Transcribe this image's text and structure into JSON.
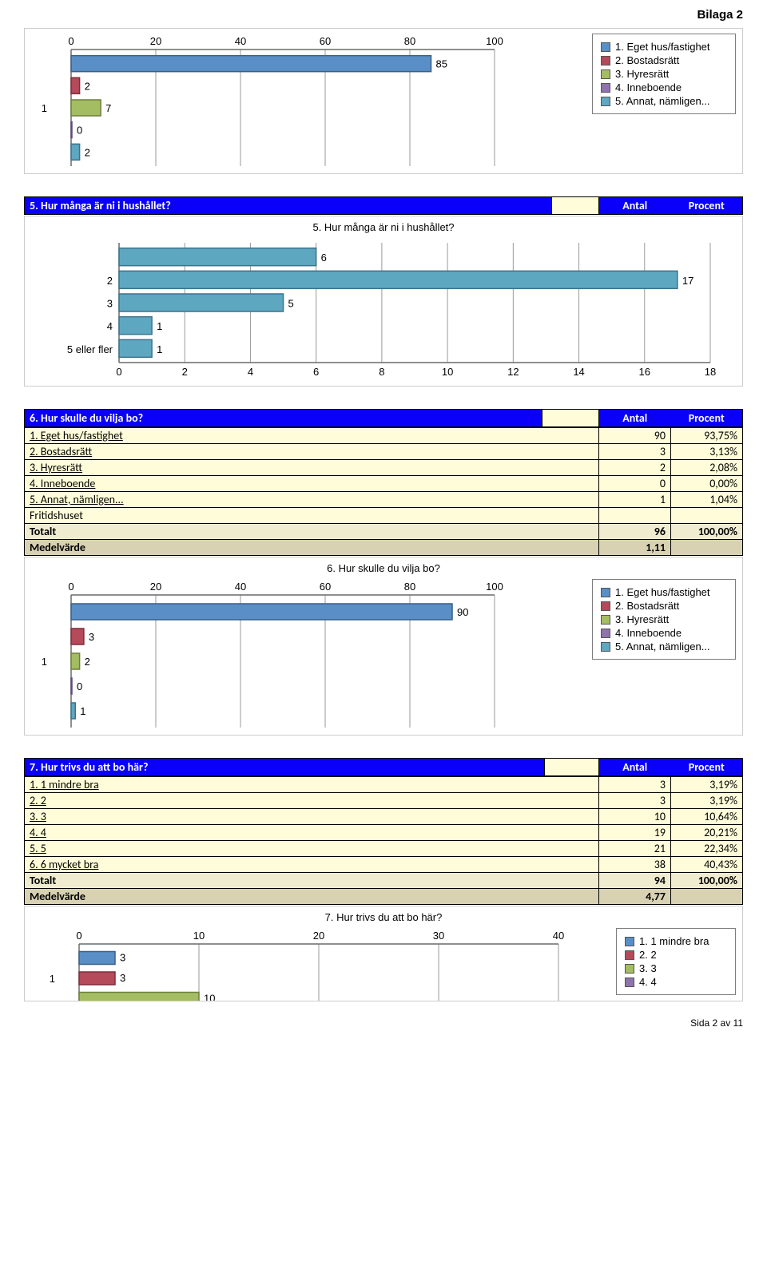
{
  "page": {
    "bilaga": "Bilaga 2",
    "footer": "Sida 2 av 11"
  },
  "headers": {
    "antal": "Antal",
    "procent": "Procent"
  },
  "totalt_label": "Totalt",
  "medel_label": "Medelvärde",
  "chart_top": {
    "title": "",
    "xlim": [
      0,
      100
    ],
    "xtick_step": 20,
    "x_ticks": [
      0,
      20,
      40,
      60,
      80,
      100
    ],
    "group_label": "1",
    "bars": [
      {
        "value": 85,
        "label": "85",
        "color": "#598fc6",
        "border": "#3a5f86"
      },
      {
        "value": 2,
        "label": "2",
        "color": "#b44a5a",
        "border": "#7d2e3b"
      },
      {
        "value": 7,
        "label": "7",
        "color": "#a5bd62",
        "border": "#6d7f3c"
      },
      {
        "value": 0,
        "label": "0",
        "color": "#8f73ac",
        "border": "#5f4977"
      },
      {
        "value": 2,
        "label": "2",
        "color": "#5ea7c1",
        "border": "#3c7289"
      }
    ],
    "legend": [
      {
        "label": "1. Eget hus/fastighet",
        "color": "#598fc6"
      },
      {
        "label": "2. Bostadsrätt",
        "color": "#b44a5a"
      },
      {
        "label": "3. Hyresrätt",
        "color": "#a5bd62"
      },
      {
        "label": "4. Inneboende",
        "color": "#8f73ac"
      },
      {
        "label": "5. Annat, nämligen...",
        "color": "#5ea7c1"
      }
    ]
  },
  "q5": {
    "question": "5. Hur många är ni i hushållet?",
    "chart": {
      "title": "5. Hur många är ni i hushållet?",
      "xlim": [
        0,
        18
      ],
      "xtick_step": 2,
      "x_ticks": [
        0,
        2,
        4,
        6,
        8,
        10,
        12,
        14,
        16,
        18
      ],
      "bars": [
        {
          "cat": "",
          "value": 6,
          "label": "6",
          "color": "#5ea7c1",
          "border": "#3c7289"
        },
        {
          "cat": "2",
          "value": 17,
          "label": "17",
          "color": "#5ea7c1",
          "border": "#3c7289"
        },
        {
          "cat": "3",
          "value": 5,
          "label": "5",
          "color": "#5ea7c1",
          "border": "#3c7289"
        },
        {
          "cat": "4",
          "value": 1,
          "label": "1",
          "color": "#5ea7c1",
          "border": "#3c7289"
        },
        {
          "cat": "5 eller fler",
          "value": 1,
          "label": "1",
          "color": "#5ea7c1",
          "border": "#3c7289"
        }
      ]
    }
  },
  "q6": {
    "question": "6. Hur skulle du vilja bo?",
    "rows": [
      {
        "label": "1. Eget hus/fastighet",
        "antal": "90",
        "procent": "93,75%"
      },
      {
        "label": "2. Bostadsrätt",
        "antal": "3",
        "procent": "3,13%"
      },
      {
        "label": "3. Hyresrätt",
        "antal": "2",
        "procent": "2,08%"
      },
      {
        "label": "4. Inneboende",
        "antal": "0",
        "procent": "0,00%"
      },
      {
        "label": "5. Annat, nämligen...",
        "antal": "1",
        "procent": "1,04%"
      }
    ],
    "extra_row": "Fritidshuset",
    "totalt": {
      "antal": "96",
      "procent": "100,00%"
    },
    "medel": "1,11",
    "chart": {
      "title": "6. Hur skulle du vilja bo?",
      "xlim": [
        0,
        100
      ],
      "xtick_step": 20,
      "x_ticks": [
        0,
        20,
        40,
        60,
        80,
        100
      ],
      "group_label": "1",
      "bars": [
        {
          "value": 90,
          "label": "90",
          "color": "#598fc6",
          "border": "#3a5f86"
        },
        {
          "value": 3,
          "label": "3",
          "color": "#b44a5a",
          "border": "#7d2e3b"
        },
        {
          "value": 2,
          "label": "2",
          "color": "#a5bd62",
          "border": "#6d7f3c"
        },
        {
          "value": 0,
          "label": "0",
          "color": "#8f73ac",
          "border": "#5f4977"
        },
        {
          "value": 1,
          "label": "1",
          "color": "#5ea7c1",
          "border": "#3c7289"
        }
      ],
      "legend": [
        {
          "label": "1. Eget hus/fastighet",
          "color": "#598fc6"
        },
        {
          "label": "2. Bostadsrätt",
          "color": "#b44a5a"
        },
        {
          "label": "3. Hyresrätt",
          "color": "#a5bd62"
        },
        {
          "label": "4. Inneboende",
          "color": "#8f73ac"
        },
        {
          "label": "5. Annat, nämligen...",
          "color": "#5ea7c1"
        }
      ]
    }
  },
  "q7": {
    "question": "7. Hur trivs du att bo här?",
    "rows": [
      {
        "label": "1. 1 mindre bra",
        "antal": "3",
        "procent": "3,19%"
      },
      {
        "label": "2. 2",
        "antal": "3",
        "procent": "3,19%"
      },
      {
        "label": "3. 3",
        "antal": "10",
        "procent": "10,64%"
      },
      {
        "label": "4. 4",
        "antal": "19",
        "procent": "20,21%"
      },
      {
        "label": "5. 5",
        "antal": "21",
        "procent": "22,34%"
      },
      {
        "label": "6. 6 mycket bra",
        "antal": "38",
        "procent": "40,43%"
      }
    ],
    "totalt": {
      "antal": "94",
      "procent": "100,00%"
    },
    "medel": "4,77",
    "chart": {
      "title": "7. Hur trivs du att bo här?",
      "xlim": [
        0,
        40
      ],
      "xtick_step": 10,
      "x_ticks": [
        0,
        10,
        20,
        30,
        40
      ],
      "group_label": "1",
      "bars_visible": [
        {
          "value": 3,
          "label": "3",
          "color": "#598fc6",
          "border": "#3a5f86"
        },
        {
          "value": 3,
          "label": "3",
          "color": "#b44a5a",
          "border": "#7d2e3b"
        },
        {
          "value": 10,
          "label": "10",
          "color": "#a5bd62",
          "border": "#6d7f3c"
        }
      ],
      "legend_visible": [
        {
          "label": "1. 1 mindre bra",
          "color": "#598fc6"
        },
        {
          "label": "2. 2",
          "color": "#b44a5a"
        },
        {
          "label": "3. 3",
          "color": "#a5bd62"
        },
        {
          "label": "4. 4",
          "color": "#8f73ac"
        }
      ]
    }
  }
}
